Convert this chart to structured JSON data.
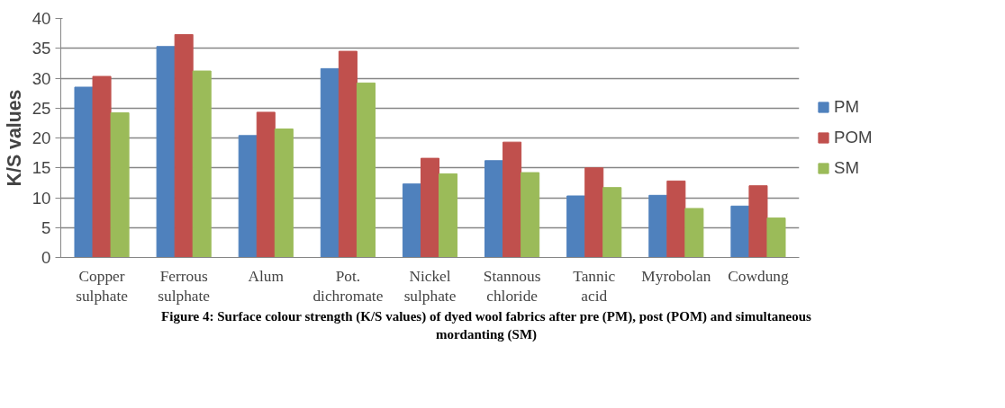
{
  "chart_data": {
    "type": "bar",
    "title": "Figure 4: Surface colour strength (K/S values) of dyed wool fabrics after pre (PM), post (POM) and simultaneous mordanting (SM)",
    "ylabel": "K/S values",
    "categories": [
      "Copper\nsulphate",
      "Ferrous\nsulphate",
      "Alum",
      "Pot.\ndichromate",
      "Nickel\nsulphate",
      "Stannous\nchloride",
      "Tannic\nacid",
      "Myrobolan",
      "Cowdung"
    ],
    "series": [
      {
        "name": "PM",
        "color": "#4f81bd",
        "values": [
          28.5,
          35.3,
          20.4,
          31.6,
          12.3,
          16.2,
          10.3,
          10.4,
          8.6
        ]
      },
      {
        "name": "POM",
        "color": "#c0504d",
        "values": [
          30.3,
          37.3,
          24.3,
          34.5,
          16.6,
          19.3,
          15.0,
          12.8,
          12.0
        ]
      },
      {
        "name": "SM",
        "color": "#9bbb59",
        "values": [
          24.2,
          31.2,
          21.5,
          29.2,
          14.0,
          14.2,
          11.7,
          8.2,
          6.6
        ]
      }
    ],
    "ylim": [
      0,
      40
    ],
    "yticks": [
      0,
      5,
      10,
      15,
      20,
      25,
      30,
      35,
      40
    ],
    "grid": "y",
    "legend": "right"
  }
}
